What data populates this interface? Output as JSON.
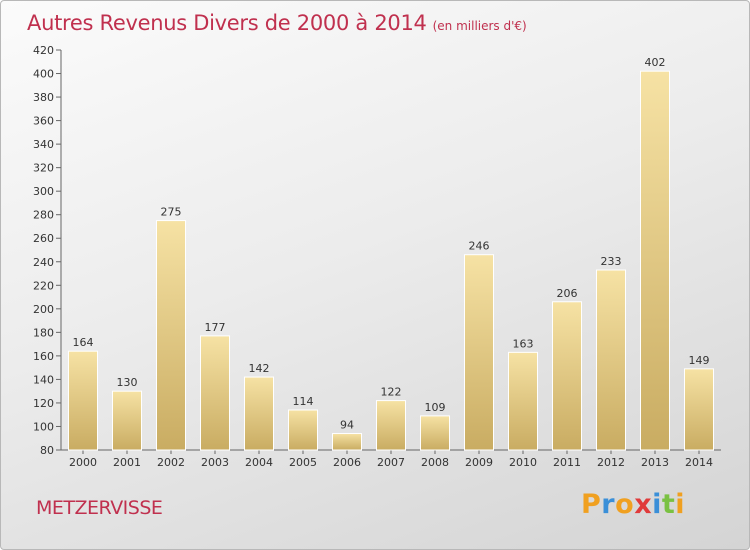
{
  "chart_data": {
    "type": "bar",
    "title": "Autres Revenus Divers de 2000 à 2014",
    "subtitle": "(en milliers d'€)",
    "categories": [
      "2000",
      "2001",
      "2002",
      "2003",
      "2004",
      "2005",
      "2006",
      "2007",
      "2008",
      "2009",
      "2010",
      "2011",
      "2012",
      "2013",
      "2014"
    ],
    "values": [
      164,
      130,
      275,
      177,
      142,
      114,
      94,
      122,
      109,
      246,
      163,
      206,
      233,
      402,
      149
    ],
    "ylim": [
      80,
      420
    ],
    "ytick_step": 20,
    "grid": false,
    "bar_color": "#e8cc84"
  },
  "commune": "METZERVISSE",
  "logo": {
    "letters": [
      "P",
      "r",
      "o",
      "x",
      "i",
      "t",
      "i"
    ],
    "colors": [
      "#f0a020",
      "#3a8fd8",
      "#f0a020",
      "#e03a3a",
      "#3a8fd8",
      "#7ac142",
      "#f0a020"
    ]
  }
}
